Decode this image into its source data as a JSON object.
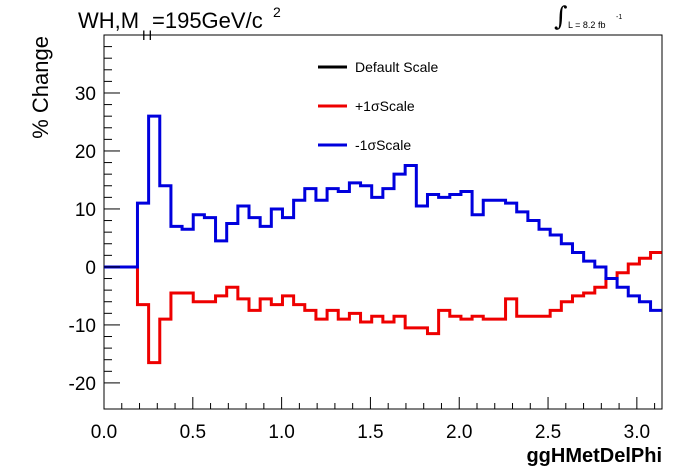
{
  "header": {
    "title_main": "WH,M",
    "title_sub": "H",
    "title_rest": "=195GeV/c",
    "title_sup": "2",
    "lumi_integral": "∫",
    "lumi_text": "L = 8.2 fb",
    "lumi_sup": "-1"
  },
  "colors": {
    "default": "#000000",
    "plus": "#ee0000",
    "minus": "#0000dd",
    "axis": "#000000",
    "background": "#ffffff"
  },
  "chart_data": {
    "type": "line",
    "step": true,
    "title": "WH,MH=195GeV/c2",
    "xlabel": "ggHMetDelPhi",
    "ylabel": "% Change",
    "xlim": [
      0.0,
      3.1416
    ],
    "ylim": [
      -24.5,
      40.0
    ],
    "x_ticks": [
      "0.0",
      "0.5",
      "1.0",
      "1.5",
      "2.0",
      "2.5",
      "3.0"
    ],
    "x_tick_values": [
      0.0,
      0.5,
      1.0,
      1.5,
      2.0,
      2.5,
      3.0
    ],
    "y_ticks": [
      "-20",
      "-10",
      "0",
      "10",
      "20",
      "30"
    ],
    "y_tick_values": [
      -20,
      -10,
      0,
      10,
      20,
      30
    ],
    "grid": false,
    "legend_position": "top-center",
    "bin_width": 0.0628,
    "x_bin_edges_start": 0.0,
    "series": [
      {
        "name": "Default Scale",
        "color_key": "default",
        "values": [
          0,
          0,
          0,
          0,
          0,
          0,
          0,
          0,
          0,
          0,
          0,
          0,
          0,
          0,
          0,
          0,
          0,
          0,
          0,
          0,
          0,
          0,
          0,
          0,
          0,
          0,
          0,
          0,
          0,
          0,
          0,
          0,
          0,
          0,
          0,
          0,
          0,
          0,
          0,
          0,
          0,
          0,
          0,
          0,
          0,
          0,
          0,
          0,
          0,
          0
        ],
        "visible": false
      },
      {
        "name": "+1σScale",
        "color_key": "plus",
        "values": [
          0,
          0,
          0,
          -6.5,
          -16.5,
          -9,
          -4.5,
          -4.5,
          -6,
          -6,
          -5,
          -3.5,
          -5.5,
          -7.5,
          -5.5,
          -6.5,
          -5,
          -6.5,
          -7.5,
          -9,
          -7.5,
          -9,
          -8,
          -9.5,
          -8.5,
          -9.5,
          -8.5,
          -10.5,
          -10.5,
          -11.5,
          -7.5,
          -8.5,
          -9,
          -8.5,
          -9,
          -9,
          -5.5,
          -8.5,
          -8.5,
          -8.5,
          -7.5,
          -6,
          -5,
          -4.5,
          -3.5,
          -2,
          -1,
          0.5,
          1.5,
          2.5
        ]
      },
      {
        "name": "-1σScale",
        "color_key": "minus",
        "values": [
          0,
          0,
          0,
          11,
          26,
          14,
          7,
          6.5,
          9,
          8.5,
          4.5,
          7.5,
          10.5,
          8.5,
          7,
          10,
          8.5,
          11.5,
          13.5,
          11.5,
          13.5,
          13,
          14.5,
          14,
          12,
          13.5,
          16,
          17.5,
          10.5,
          12.5,
          12,
          12.5,
          13,
          9,
          11.5,
          11.5,
          11,
          9.5,
          8,
          6.5,
          5.5,
          4,
          2.5,
          1,
          0,
          -2,
          -3.5,
          -5,
          -6,
          -7.5
        ]
      }
    ]
  }
}
